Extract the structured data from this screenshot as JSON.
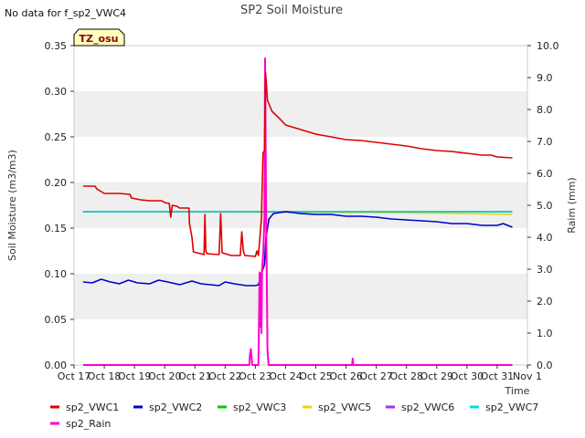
{
  "chart_data": {
    "type": "line",
    "title": "SP2 Soil Moisture",
    "note": "No data for f_sp2_VWC4",
    "badge": "TZ_osu",
    "xlabel": "Time",
    "ylabel": "Soil Moisture (m3/m3)",
    "y2label": "Raim (mm)",
    "xlim": [
      0,
      15
    ],
    "ylim": [
      0,
      0.35
    ],
    "y2lim": [
      0,
      10
    ],
    "x_ticks": [
      {
        "x": 0,
        "label": "Oct 17"
      },
      {
        "x": 1,
        "label": "Oct 18"
      },
      {
        "x": 2,
        "label": "Oct 19"
      },
      {
        "x": 3,
        "label": "Oct 20"
      },
      {
        "x": 4,
        "label": "Oct 21"
      },
      {
        "x": 5,
        "label": "Oct 22"
      },
      {
        "x": 6,
        "label": "Oct 23"
      },
      {
        "x": 7,
        "label": "Oct 24"
      },
      {
        "x": 8,
        "label": "Oct 25"
      },
      {
        "x": 9,
        "label": "Oct 26"
      },
      {
        "x": 10,
        "label": "Oct 27"
      },
      {
        "x": 11,
        "label": "Oct 28"
      },
      {
        "x": 12,
        "label": "Oct 29"
      },
      {
        "x": 13,
        "label": "Oct 30"
      },
      {
        "x": 14,
        "label": "Oct 31"
      },
      {
        "x": 15,
        "label": "Nov 1"
      }
    ],
    "y_ticks": [
      "0.00",
      "0.05",
      "0.10",
      "0.15",
      "0.20",
      "0.25",
      "0.30",
      "0.35"
    ],
    "y_tick_values": [
      0,
      0.05,
      0.1,
      0.15,
      0.2,
      0.25,
      0.3,
      0.35
    ],
    "y2_ticks": [
      "0.0",
      "1.0",
      "2.0",
      "3.0",
      "4.0",
      "5.0",
      "6.0",
      "7.0",
      "8.0",
      "9.0",
      "10.0"
    ],
    "y2_tick_values": [
      0,
      1,
      2,
      3,
      4,
      5,
      6,
      7,
      8,
      9,
      10
    ],
    "grid": "horizontal bands",
    "legend_position": "bottom",
    "series": [
      {
        "name": "sp2_VWC1",
        "color": "#dd0000",
        "axis": "left",
        "points": [
          [
            0.3,
            0.196
          ],
          [
            0.7,
            0.196
          ],
          [
            0.75,
            0.193
          ],
          [
            0.9,
            0.19
          ],
          [
            1.0,
            0.188
          ],
          [
            1.5,
            0.188
          ],
          [
            1.85,
            0.187
          ],
          [
            1.9,
            0.183
          ],
          [
            2.2,
            0.181
          ],
          [
            2.5,
            0.18
          ],
          [
            2.9,
            0.18
          ],
          [
            3.0,
            0.178
          ],
          [
            3.15,
            0.177
          ],
          [
            3.2,
            0.162
          ],
          [
            3.25,
            0.175
          ],
          [
            3.4,
            0.174
          ],
          [
            3.5,
            0.172
          ],
          [
            3.7,
            0.172
          ],
          [
            3.8,
            0.172
          ],
          [
            3.82,
            0.155
          ],
          [
            3.9,
            0.14
          ],
          [
            3.95,
            0.124
          ],
          [
            4.3,
            0.121
          ],
          [
            4.33,
            0.165
          ],
          [
            4.36,
            0.125
          ],
          [
            4.4,
            0.122
          ],
          [
            4.8,
            0.121
          ],
          [
            4.85,
            0.166
          ],
          [
            4.9,
            0.123
          ],
          [
            5.2,
            0.12
          ],
          [
            5.5,
            0.12
          ],
          [
            5.55,
            0.146
          ],
          [
            5.6,
            0.125
          ],
          [
            5.65,
            0.12
          ],
          [
            6.0,
            0.119
          ],
          [
            6.05,
            0.125
          ],
          [
            6.1,
            0.12
          ],
          [
            6.2,
            0.16
          ],
          [
            6.25,
            0.232
          ],
          [
            6.3,
            0.235
          ],
          [
            6.34,
            0.32
          ],
          [
            6.4,
            0.29
          ],
          [
            6.55,
            0.278
          ],
          [
            6.8,
            0.27
          ],
          [
            7.0,
            0.263
          ],
          [
            7.5,
            0.258
          ],
          [
            8.0,
            0.253
          ],
          [
            8.5,
            0.25
          ],
          [
            9.0,
            0.247
          ],
          [
            9.5,
            0.246
          ],
          [
            10.0,
            0.244
          ],
          [
            10.5,
            0.242
          ],
          [
            11.0,
            0.24
          ],
          [
            11.5,
            0.237
          ],
          [
            12.0,
            0.235
          ],
          [
            12.5,
            0.234
          ],
          [
            13.0,
            0.232
          ],
          [
            13.5,
            0.23
          ],
          [
            13.8,
            0.23
          ],
          [
            14.0,
            0.228
          ],
          [
            14.5,
            0.227
          ]
        ]
      },
      {
        "name": "sp2_VWC2",
        "color": "#0000cc",
        "axis": "left",
        "points": [
          [
            0.3,
            0.091
          ],
          [
            0.6,
            0.09
          ],
          [
            0.9,
            0.094
          ],
          [
            1.2,
            0.091
          ],
          [
            1.5,
            0.089
          ],
          [
            1.8,
            0.093
          ],
          [
            2.1,
            0.09
          ],
          [
            2.5,
            0.089
          ],
          [
            2.8,
            0.093
          ],
          [
            3.1,
            0.091
          ],
          [
            3.5,
            0.088
          ],
          [
            3.9,
            0.092
          ],
          [
            4.2,
            0.089
          ],
          [
            4.5,
            0.088
          ],
          [
            4.8,
            0.087
          ],
          [
            5.0,
            0.091
          ],
          [
            5.3,
            0.089
          ],
          [
            5.7,
            0.087
          ],
          [
            6.0,
            0.087
          ],
          [
            6.1,
            0.088
          ],
          [
            6.2,
            0.1
          ],
          [
            6.3,
            0.11
          ],
          [
            6.35,
            0.14
          ],
          [
            6.45,
            0.16
          ],
          [
            6.6,
            0.166
          ],
          [
            6.8,
            0.167
          ],
          [
            7.0,
            0.168
          ],
          [
            7.5,
            0.166
          ],
          [
            8.0,
            0.165
          ],
          [
            8.5,
            0.165
          ],
          [
            9.0,
            0.163
          ],
          [
            9.5,
            0.163
          ],
          [
            10.0,
            0.162
          ],
          [
            10.5,
            0.16
          ],
          [
            11.0,
            0.159
          ],
          [
            11.5,
            0.158
          ],
          [
            12.0,
            0.157
          ],
          [
            12.5,
            0.155
          ],
          [
            13.0,
            0.155
          ],
          [
            13.5,
            0.153
          ],
          [
            14.0,
            0.153
          ],
          [
            14.2,
            0.155
          ],
          [
            14.5,
            0.151
          ]
        ]
      },
      {
        "name": "sp2_VWC3",
        "color": "#00cc00",
        "axis": "left",
        "points": [
          [
            0.3,
            0.168
          ],
          [
            14.5,
            0.168
          ]
        ]
      },
      {
        "name": "sp2_VWC5",
        "color": "#dddd00",
        "axis": "left",
        "points": [
          [
            0.3,
            0.168
          ],
          [
            10.0,
            0.167
          ],
          [
            13.0,
            0.166
          ],
          [
            14.5,
            0.165
          ]
        ]
      },
      {
        "name": "sp2_VWC6",
        "color": "#9933ff",
        "axis": "left",
        "points": [
          [
            0.3,
            0.168
          ],
          [
            14.5,
            0.168
          ]
        ]
      },
      {
        "name": "sp2_VWC7",
        "color": "#00dddd",
        "axis": "left",
        "points": [
          [
            0.3,
            0.168
          ],
          [
            14.5,
            0.168
          ]
        ]
      },
      {
        "name": "sp2_Rain",
        "color": "#ff00cc",
        "axis": "right",
        "points": [
          [
            0.3,
            0
          ],
          [
            5.8,
            0
          ],
          [
            5.82,
            0.3
          ],
          [
            5.85,
            0.5
          ],
          [
            5.88,
            0.2
          ],
          [
            5.9,
            0
          ],
          [
            6.1,
            0
          ],
          [
            6.12,
            1.5
          ],
          [
            6.14,
            2.9
          ],
          [
            6.16,
            1.2
          ],
          [
            6.18,
            2.8
          ],
          [
            6.2,
            1.0
          ],
          [
            6.22,
            3.0
          ],
          [
            6.26,
            3.5
          ],
          [
            6.3,
            4.6
          ],
          [
            6.32,
            9.6
          ],
          [
            6.34,
            7.0
          ],
          [
            6.36,
            4.0
          ],
          [
            6.38,
            2.5
          ],
          [
            6.4,
            0.5
          ],
          [
            6.42,
            0.2
          ],
          [
            6.44,
            0
          ],
          [
            9.2,
            0
          ],
          [
            9.22,
            0.2
          ],
          [
            9.24,
            0
          ],
          [
            14.5,
            0
          ]
        ]
      }
    ]
  }
}
